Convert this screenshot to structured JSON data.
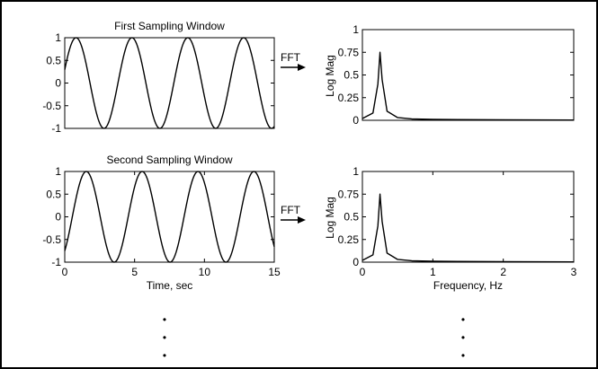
{
  "figure": {
    "fft_label": "FFT",
    "ellipsis_dot": "•"
  },
  "chart_data": [
    {
      "type": "line",
      "title": "First Sampling Window",
      "xlabel": "",
      "ylabel": "",
      "xlim": [
        0,
        15
      ],
      "ylim": [
        -1,
        1
      ],
      "yticks": [
        "1",
        "0.5",
        "0",
        "-0.5",
        "-1"
      ],
      "xticks": [],
      "grid": false,
      "series": [
        {
          "function": "sin",
          "frequency_hz": 0.25,
          "amplitude": 1,
          "phase_rad": 0.3,
          "x_start": 0,
          "x_end": 15
        }
      ]
    },
    {
      "type": "line",
      "title": "",
      "xlabel": "",
      "ylabel": "Log Mag",
      "xlim": [
        0,
        3
      ],
      "ylim": [
        0,
        1
      ],
      "yticks": [
        "1",
        "0.75",
        "0.5",
        "0.25",
        "0"
      ],
      "xticks": [],
      "grid": false,
      "series": [
        {
          "peak_frequency_hz": 0.25,
          "peak_value": 0.75,
          "x": [
            0,
            0.15,
            0.22,
            0.25,
            0.28,
            0.35,
            0.5,
            0.7,
            1.0,
            2.0,
            3.0
          ],
          "y": [
            0.02,
            0.08,
            0.4,
            0.75,
            0.45,
            0.1,
            0.03,
            0.015,
            0.01,
            0.005,
            0.003
          ]
        }
      ]
    },
    {
      "type": "line",
      "title": "Second Sampling Window",
      "xlabel": "Time, sec",
      "ylabel": "",
      "xlim": [
        0,
        15
      ],
      "ylim": [
        -1,
        1
      ],
      "yticks": [
        "1",
        "0.5",
        "0",
        "-0.5",
        "-1"
      ],
      "xticks": [
        "0",
        "5",
        "10",
        "15"
      ],
      "grid": false,
      "series": [
        {
          "function": "sin",
          "frequency_hz": 0.25,
          "amplitude": 1,
          "phase_rad": -0.85,
          "x_start": 0,
          "x_end": 15
        }
      ]
    },
    {
      "type": "line",
      "title": "",
      "xlabel": "Frequency, Hz",
      "ylabel": "Log Mag",
      "xlim": [
        0,
        3
      ],
      "ylim": [
        0,
        1
      ],
      "yticks": [
        "1",
        "0.75",
        "0.5",
        "0.25",
        "0"
      ],
      "xticks": [
        "0",
        "1",
        "2",
        "3"
      ],
      "grid": false,
      "series": [
        {
          "peak_frequency_hz": 0.25,
          "peak_value": 0.75,
          "x": [
            0,
            0.15,
            0.22,
            0.25,
            0.28,
            0.35,
            0.5,
            0.7,
            1.0,
            2.0,
            3.0
          ],
          "y": [
            0.02,
            0.08,
            0.4,
            0.75,
            0.45,
            0.1,
            0.03,
            0.015,
            0.01,
            0.005,
            0.003
          ]
        }
      ]
    }
  ]
}
